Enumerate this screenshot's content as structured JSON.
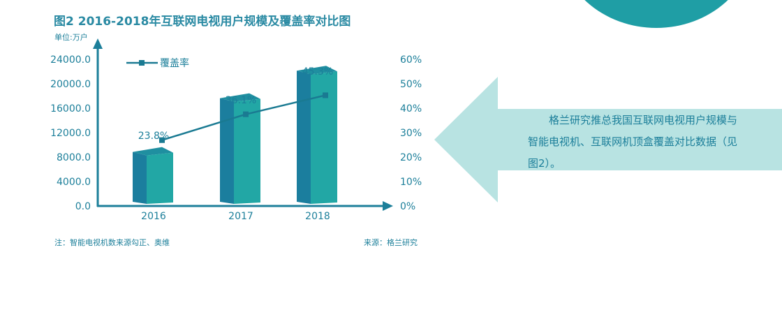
{
  "title": "图2  2016-2018年互联网电视用户规模及覆盖率对比图",
  "unit_label": "单位:万户",
  "note": "注：智能电视机数来源勾正、奥维",
  "source": "来源：格兰研究",
  "callout_text": "格兰研究推总我国互联网电视用户规模与智能电视机、互联网机顶盒覆盖对比数据（见图2）。",
  "colors": {
    "bar_front": "#22a7a5",
    "bar_side": "#1b7e9e",
    "bar_top": "#1f8fa0",
    "line": "#1a7a92",
    "axis": "#1c7f9a",
    "text": "#1c7f9a",
    "callout_bg": "#b8e3e2",
    "circle": "#1f9ea5"
  },
  "chart_data": {
    "type": "bar",
    "categories": [
      "2016",
      "2017",
      "2018"
    ],
    "series": [
      {
        "name": "用户规模",
        "axis": "left",
        "type": "bar",
        "values": [
          9300,
          18100,
          22600
        ]
      },
      {
        "name": "覆盖率",
        "axis": "right",
        "type": "line",
        "values": [
          23.8,
          36.1,
          45.3
        ],
        "labels": [
          "23.8%",
          "36.1%",
          "45.3%"
        ]
      }
    ],
    "y_left": {
      "min": 0,
      "max": 24000,
      "ticks": [
        "24000.0",
        "20000.0",
        "16000.0",
        "12000.0",
        "8000.0",
        "4000.0",
        "0.0"
      ]
    },
    "y_right": {
      "min": 0,
      "max": 60,
      "ticks": [
        "60%",
        "50%",
        "40%",
        "30%",
        "20%",
        "10%",
        "0%"
      ]
    },
    "legend": {
      "label": "覆盖率",
      "placement": "top-left"
    },
    "grid": false
  }
}
